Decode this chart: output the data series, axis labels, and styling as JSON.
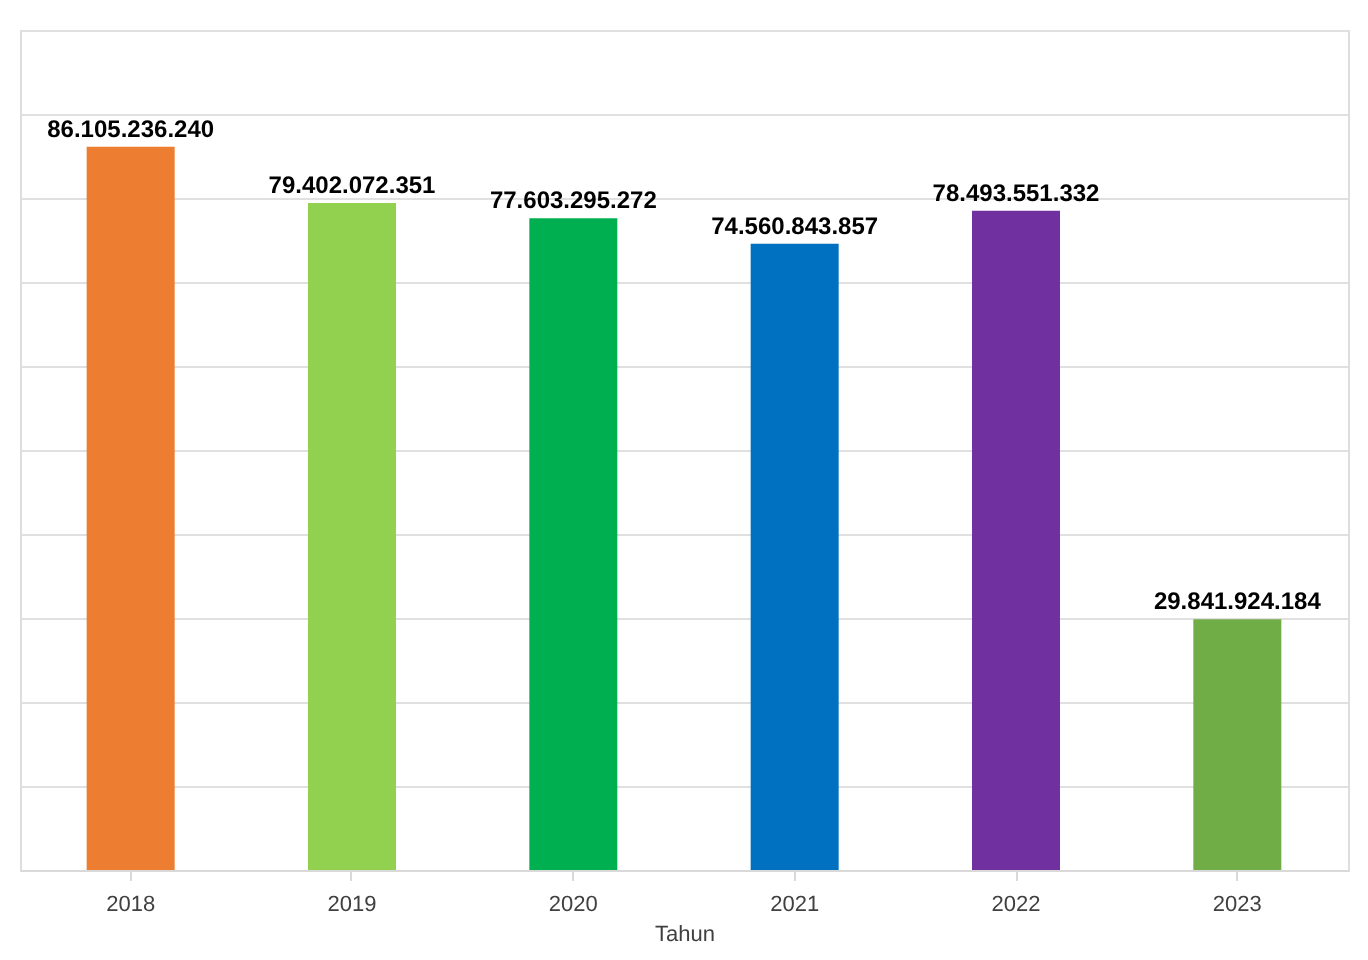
{
  "chart_data": {
    "type": "bar",
    "xlabel": "Tahun",
    "categories": [
      "2018",
      "2019",
      "2020",
      "2021",
      "2022",
      "2023"
    ],
    "values": [
      86105236240,
      79402072351,
      77603295272,
      74560843857,
      78493551332,
      29841924184
    ],
    "colors": [
      "#ed7d31",
      "#92d050",
      "#00b050",
      "#0070c0",
      "#7030a0",
      "#70ad47"
    ],
    "value_labels": [
      "86.105.236.240",
      "79.402.072.351",
      "77.603.295.272",
      "74.560.843.857",
      "78.493.551.332",
      "29.841.924.184"
    ],
    "ylim": [
      0,
      100000000000
    ],
    "yticks": [
      {
        "value": 0,
        "label": null
      },
      {
        "value": 10000000000,
        "label": null
      },
      {
        "value": 20000000000,
        "label": null
      },
      {
        "value": 30000000000,
        "label": null
      },
      {
        "value": 40000000000,
        "label": null
      },
      {
        "value": 50000000000,
        "label": null
      },
      {
        "value": 60000000000,
        "label": null
      },
      {
        "value": 70000000000,
        "label": null
      },
      {
        "value": 80000000000,
        "label": null
      },
      {
        "value": 90000000000,
        "label": null
      },
      {
        "value": 100000000000,
        "label": null
      }
    ],
    "grid": "y",
    "tick_labels": "x"
  }
}
